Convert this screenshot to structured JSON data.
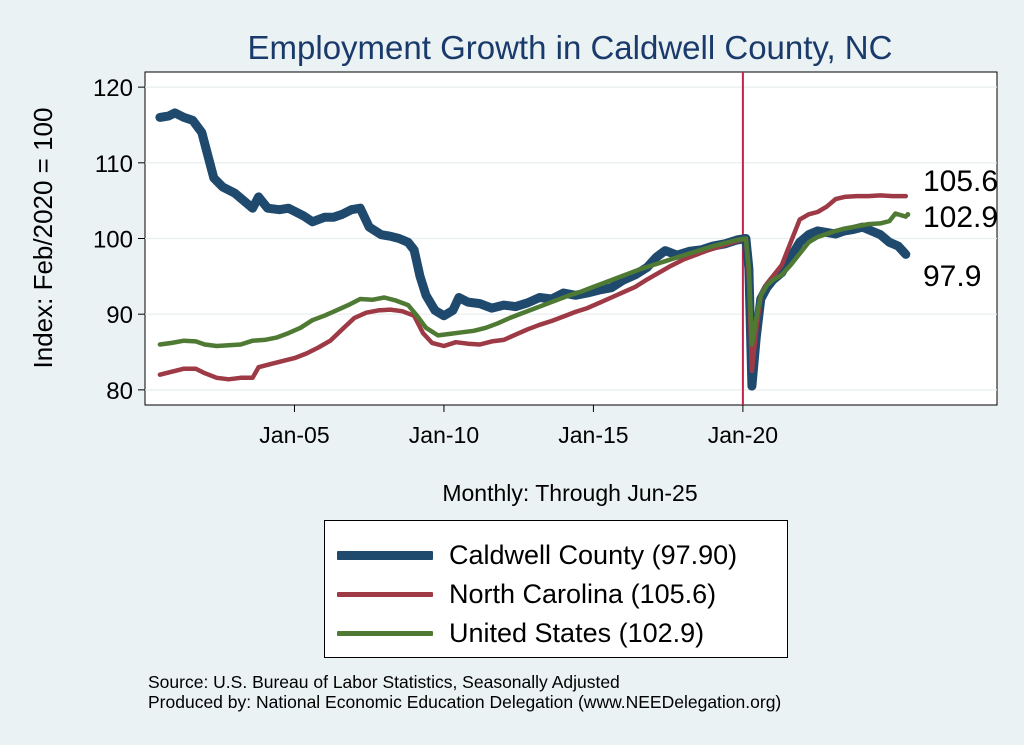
{
  "chart_data": {
    "type": "line",
    "title": "Employment Growth in Caldwell  County, NC",
    "ylabel": "Index: Feb/2020 = 100",
    "xlabel": "Monthly: Through Jun-25",
    "ylim": [
      78,
      122
    ],
    "xlim": [
      2000.0,
      2028.5
    ],
    "yticks": [
      80,
      90,
      100,
      110,
      120
    ],
    "xticks": [
      {
        "value": 2005.0,
        "label": "Jan-05"
      },
      {
        "value": 2010.0,
        "label": "Jan-10"
      },
      {
        "value": 2015.0,
        "label": "Jan-15"
      },
      {
        "value": 2020.0,
        "label": "Jan-20"
      }
    ],
    "grid": "horizontal",
    "reference_line": {
      "x": 2020.0,
      "color": "#c0264a"
    },
    "series": [
      {
        "name": "Caldwell  County (97.90)",
        "color": "#1f4a6e",
        "width": 9,
        "end_label": "97.9",
        "points": [
          [
            2000.5,
            116
          ],
          [
            2000.8,
            116.2
          ],
          [
            2001.0,
            116.6
          ],
          [
            2001.3,
            116
          ],
          [
            2001.6,
            115.6
          ],
          [
            2001.9,
            114
          ],
          [
            2002.1,
            111
          ],
          [
            2002.3,
            108
          ],
          [
            2002.6,
            106.8
          ],
          [
            2003.0,
            106
          ],
          [
            2003.3,
            105
          ],
          [
            2003.6,
            104
          ],
          [
            2003.8,
            105.5
          ],
          [
            2004.1,
            104
          ],
          [
            2004.5,
            103.8
          ],
          [
            2004.8,
            104
          ],
          [
            2005.0,
            103.6
          ],
          [
            2005.3,
            103
          ],
          [
            2005.6,
            102.2
          ],
          [
            2006.0,
            102.8
          ],
          [
            2006.3,
            102.8
          ],
          [
            2006.6,
            103.2
          ],
          [
            2006.9,
            103.8
          ],
          [
            2007.2,
            104
          ],
          [
            2007.5,
            101.5
          ],
          [
            2007.9,
            100.5
          ],
          [
            2008.2,
            100.3
          ],
          [
            2008.5,
            100
          ],
          [
            2008.8,
            99.5
          ],
          [
            2009.0,
            98.5
          ],
          [
            2009.2,
            95
          ],
          [
            2009.4,
            92.5
          ],
          [
            2009.7,
            90.5
          ],
          [
            2010.0,
            89.8
          ],
          [
            2010.3,
            90.5
          ],
          [
            2010.5,
            92.2
          ],
          [
            2010.8,
            91.6
          ],
          [
            2011.2,
            91.4
          ],
          [
            2011.6,
            90.8
          ],
          [
            2012.0,
            91.2
          ],
          [
            2012.4,
            91.0
          ],
          [
            2012.8,
            91.5
          ],
          [
            2013.2,
            92.2
          ],
          [
            2013.6,
            92.0
          ],
          [
            2014.0,
            92.8
          ],
          [
            2014.4,
            92.5
          ],
          [
            2014.8,
            92.8
          ],
          [
            2015.2,
            93.2
          ],
          [
            2015.6,
            93.5
          ],
          [
            2016.0,
            94.5
          ],
          [
            2016.4,
            95.2
          ],
          [
            2016.8,
            96.2
          ],
          [
            2017.1,
            97.5
          ],
          [
            2017.4,
            98.4
          ],
          [
            2017.8,
            97.8
          ],
          [
            2018.2,
            98.3
          ],
          [
            2018.6,
            98.5
          ],
          [
            2019.0,
            99.0
          ],
          [
            2019.4,
            99.3
          ],
          [
            2019.8,
            99.8
          ],
          [
            2020.1,
            100.0
          ],
          [
            2020.2,
            96
          ],
          [
            2020.3,
            80.5
          ],
          [
            2020.45,
            87
          ],
          [
            2020.6,
            92
          ],
          [
            2020.8,
            93.5
          ],
          [
            2021.0,
            94.5
          ],
          [
            2021.3,
            95.5
          ],
          [
            2021.6,
            97.5
          ],
          [
            2021.9,
            99.5
          ],
          [
            2022.2,
            100.5
          ],
          [
            2022.5,
            101.0
          ],
          [
            2022.8,
            100.8
          ],
          [
            2023.1,
            100.6
          ],
          [
            2023.4,
            101.0
          ],
          [
            2023.7,
            101.2
          ],
          [
            2024.0,
            101.5
          ],
          [
            2024.3,
            101.0
          ],
          [
            2024.6,
            100.5
          ],
          [
            2024.9,
            99.5
          ],
          [
            2025.2,
            99.0
          ],
          [
            2025.45,
            97.9
          ]
        ]
      },
      {
        "name": "North Carolina (105.6)",
        "color": "#9e3a46",
        "width": 4.5,
        "end_label": "105.6",
        "points": [
          [
            2000.5,
            82.0
          ],
          [
            2000.9,
            82.4
          ],
          [
            2001.3,
            82.8
          ],
          [
            2001.7,
            82.8
          ],
          [
            2002.0,
            82.2
          ],
          [
            2002.4,
            81.6
          ],
          [
            2002.8,
            81.4
          ],
          [
            2003.2,
            81.6
          ],
          [
            2003.6,
            81.6
          ],
          [
            2003.8,
            83.0
          ],
          [
            2004.2,
            83.4
          ],
          [
            2004.6,
            83.8
          ],
          [
            2005.0,
            84.2
          ],
          [
            2005.4,
            84.8
          ],
          [
            2005.8,
            85.6
          ],
          [
            2006.2,
            86.5
          ],
          [
            2006.6,
            88.0
          ],
          [
            2007.0,
            89.5
          ],
          [
            2007.4,
            90.2
          ],
          [
            2007.8,
            90.5
          ],
          [
            2008.2,
            90.6
          ],
          [
            2008.6,
            90.4
          ],
          [
            2009.0,
            89.8
          ],
          [
            2009.3,
            87.5
          ],
          [
            2009.6,
            86.2
          ],
          [
            2010.0,
            85.8
          ],
          [
            2010.4,
            86.3
          ],
          [
            2010.8,
            86.1
          ],
          [
            2011.2,
            86.0
          ],
          [
            2011.6,
            86.4
          ],
          [
            2012.0,
            86.6
          ],
          [
            2012.4,
            87.3
          ],
          [
            2012.8,
            88.0
          ],
          [
            2013.2,
            88.6
          ],
          [
            2013.6,
            89.1
          ],
          [
            2014.0,
            89.7
          ],
          [
            2014.4,
            90.3
          ],
          [
            2014.8,
            90.8
          ],
          [
            2015.2,
            91.5
          ],
          [
            2015.6,
            92.2
          ],
          [
            2016.0,
            92.9
          ],
          [
            2016.4,
            93.6
          ],
          [
            2016.8,
            94.6
          ],
          [
            2017.2,
            95.5
          ],
          [
            2017.6,
            96.4
          ],
          [
            2018.0,
            97.2
          ],
          [
            2018.4,
            97.8
          ],
          [
            2018.8,
            98.4
          ],
          [
            2019.2,
            98.9
          ],
          [
            2019.6,
            99.4
          ],
          [
            2020.1,
            100.0
          ],
          [
            2020.2,
            95
          ],
          [
            2020.3,
            82.5
          ],
          [
            2020.45,
            88
          ],
          [
            2020.6,
            92.5
          ],
          [
            2020.8,
            94
          ],
          [
            2021.0,
            95
          ],
          [
            2021.3,
            96.5
          ],
          [
            2021.6,
            99.5
          ],
          [
            2021.9,
            102.5
          ],
          [
            2022.2,
            103.2
          ],
          [
            2022.5,
            103.5
          ],
          [
            2022.8,
            104.2
          ],
          [
            2023.1,
            105.2
          ],
          [
            2023.4,
            105.5
          ],
          [
            2023.8,
            105.6
          ],
          [
            2024.2,
            105.6
          ],
          [
            2024.6,
            105.7
          ],
          [
            2025.0,
            105.6
          ],
          [
            2025.45,
            105.6
          ]
        ]
      },
      {
        "name": "United States (102.9)",
        "color": "#4f7a34",
        "width": 4.5,
        "end_label": "102.9",
        "points": [
          [
            2000.5,
            86.0
          ],
          [
            2000.9,
            86.2
          ],
          [
            2001.3,
            86.5
          ],
          [
            2001.7,
            86.4
          ],
          [
            2002.0,
            86.0
          ],
          [
            2002.4,
            85.8
          ],
          [
            2002.8,
            85.9
          ],
          [
            2003.2,
            86.0
          ],
          [
            2003.6,
            86.5
          ],
          [
            2004.0,
            86.6
          ],
          [
            2004.4,
            86.9
          ],
          [
            2004.8,
            87.5
          ],
          [
            2005.2,
            88.2
          ],
          [
            2005.6,
            89.2
          ],
          [
            2006.0,
            89.8
          ],
          [
            2006.4,
            90.5
          ],
          [
            2006.8,
            91.2
          ],
          [
            2007.2,
            92.0
          ],
          [
            2007.6,
            91.9
          ],
          [
            2008.0,
            92.2
          ],
          [
            2008.4,
            91.8
          ],
          [
            2008.8,
            91.2
          ],
          [
            2009.1,
            89.8
          ],
          [
            2009.4,
            88.2
          ],
          [
            2009.8,
            87.2
          ],
          [
            2010.2,
            87.4
          ],
          [
            2010.6,
            87.6
          ],
          [
            2011.0,
            87.8
          ],
          [
            2011.4,
            88.2
          ],
          [
            2011.8,
            88.8
          ],
          [
            2012.2,
            89.5
          ],
          [
            2012.6,
            90.1
          ],
          [
            2013.0,
            90.7
          ],
          [
            2013.4,
            91.3
          ],
          [
            2013.8,
            91.9
          ],
          [
            2014.2,
            92.5
          ],
          [
            2014.6,
            93.0
          ],
          [
            2015.0,
            93.6
          ],
          [
            2015.4,
            94.2
          ],
          [
            2015.8,
            94.8
          ],
          [
            2016.2,
            95.4
          ],
          [
            2016.6,
            96.0
          ],
          [
            2017.0,
            96.5
          ],
          [
            2017.4,
            97.0
          ],
          [
            2017.8,
            97.5
          ],
          [
            2018.2,
            98.0
          ],
          [
            2018.6,
            98.5
          ],
          [
            2019.0,
            99.0
          ],
          [
            2019.4,
            99.4
          ],
          [
            2019.8,
            99.8
          ],
          [
            2020.1,
            100.0
          ],
          [
            2020.2,
            96
          ],
          [
            2020.3,
            86.0
          ],
          [
            2020.45,
            89.5
          ],
          [
            2020.6,
            92.5
          ],
          [
            2020.8,
            93.8
          ],
          [
            2021.0,
            94.5
          ],
          [
            2021.3,
            95.2
          ],
          [
            2021.6,
            96.5
          ],
          [
            2021.9,
            98.0
          ],
          [
            2022.2,
            99.5
          ],
          [
            2022.5,
            100.2
          ],
          [
            2022.8,
            100.6
          ],
          [
            2023.1,
            101.0
          ],
          [
            2023.4,
            101.3
          ],
          [
            2023.8,
            101.6
          ],
          [
            2024.2,
            101.9
          ],
          [
            2024.6,
            102.0
          ],
          [
            2024.9,
            102.3
          ],
          [
            2025.1,
            103.3
          ],
          [
            2025.45,
            102.9
          ]
        ]
      }
    ]
  },
  "source_line1": "Source: U.S. Bureau of Labor Statistics, Seasonally Adjusted",
  "source_line2": "Produced by: National Economic Education Delegation (www.NEEDelegation.org)"
}
